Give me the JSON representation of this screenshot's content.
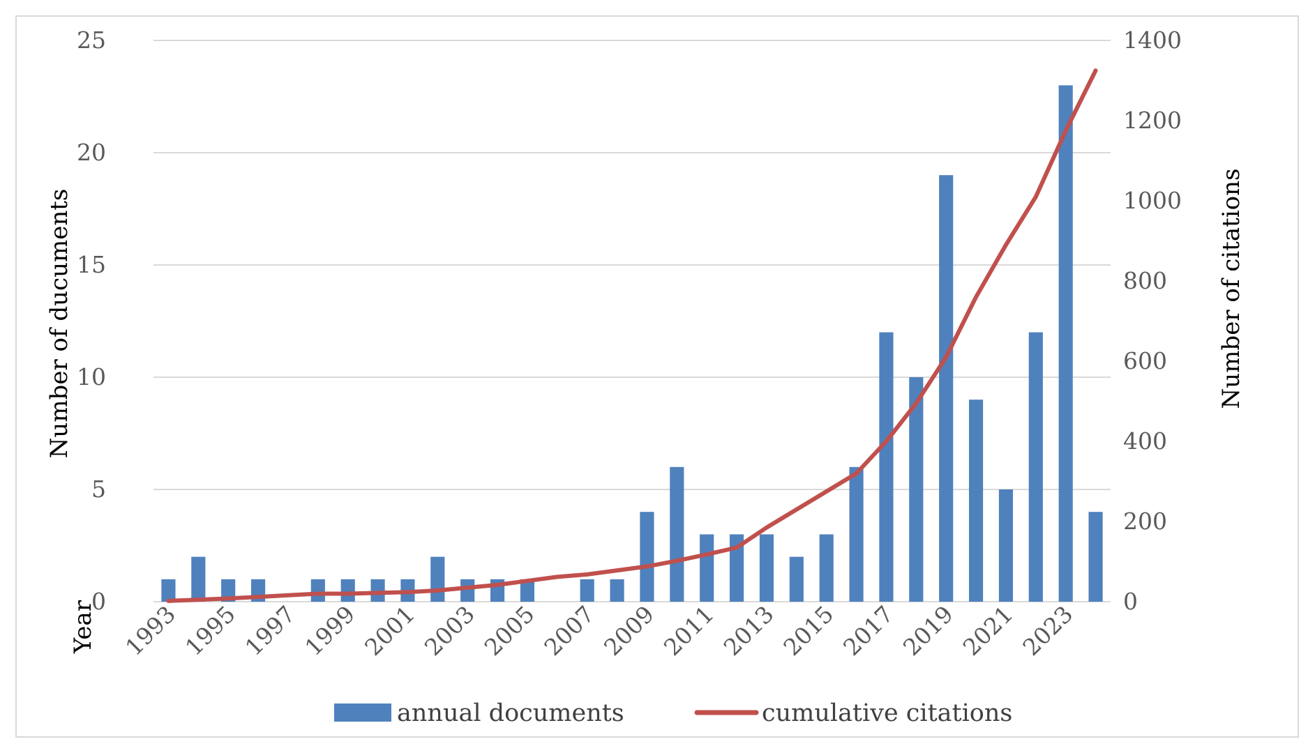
{
  "chart_data": {
    "type": "bar",
    "secondary_type": "line",
    "x": [
      1993,
      1994,
      1995,
      1996,
      1997,
      1998,
      1999,
      2000,
      2001,
      2002,
      2003,
      2004,
      2005,
      2006,
      2007,
      2008,
      2009,
      2010,
      2011,
      2012,
      2013,
      2014,
      2015,
      2016,
      2017,
      2018,
      2019,
      2020,
      2021,
      2022,
      2023,
      2024
    ],
    "x_tick_labels": [
      "1993",
      "1995",
      "1997",
      "1999",
      "2001",
      "2003",
      "2005",
      "2007",
      "2009",
      "2011",
      "2013",
      "2015",
      "2017",
      "2019",
      "2021",
      "2023"
    ],
    "xlabel": "Year",
    "ylabel": "Number of ducuments",
    "y2label": "Number of citations",
    "ylim": [
      0,
      25
    ],
    "yticks": [
      0,
      5,
      10,
      15,
      20,
      25
    ],
    "y2lim": [
      0,
      1400
    ],
    "y2ticks": [
      0,
      200,
      400,
      600,
      800,
      1000,
      1200,
      1400
    ],
    "grid": true,
    "legend_position": "bottom",
    "series": [
      {
        "name": "annual documents",
        "type": "bar",
        "axis": "left",
        "color": "#4f81bd",
        "values": [
          1,
          2,
          1,
          1,
          0,
          1,
          1,
          1,
          1,
          2,
          1,
          1,
          1,
          0,
          1,
          1,
          4,
          6,
          3,
          3,
          3,
          2,
          3,
          6,
          12,
          10,
          19,
          9,
          5,
          12,
          23,
          4
        ]
      },
      {
        "name": "cumulative citations",
        "type": "line",
        "axis": "right",
        "color": "#c0504d",
        "values": [
          2,
          5,
          8,
          12,
          16,
          20,
          20,
          22,
          24,
          28,
          35,
          42,
          52,
          62,
          68,
          78,
          88,
          102,
          118,
          135,
          185,
          230,
          275,
          320,
          400,
          495,
          610,
          760,
          890,
          1010,
          1175,
          1325
        ]
      }
    ]
  }
}
